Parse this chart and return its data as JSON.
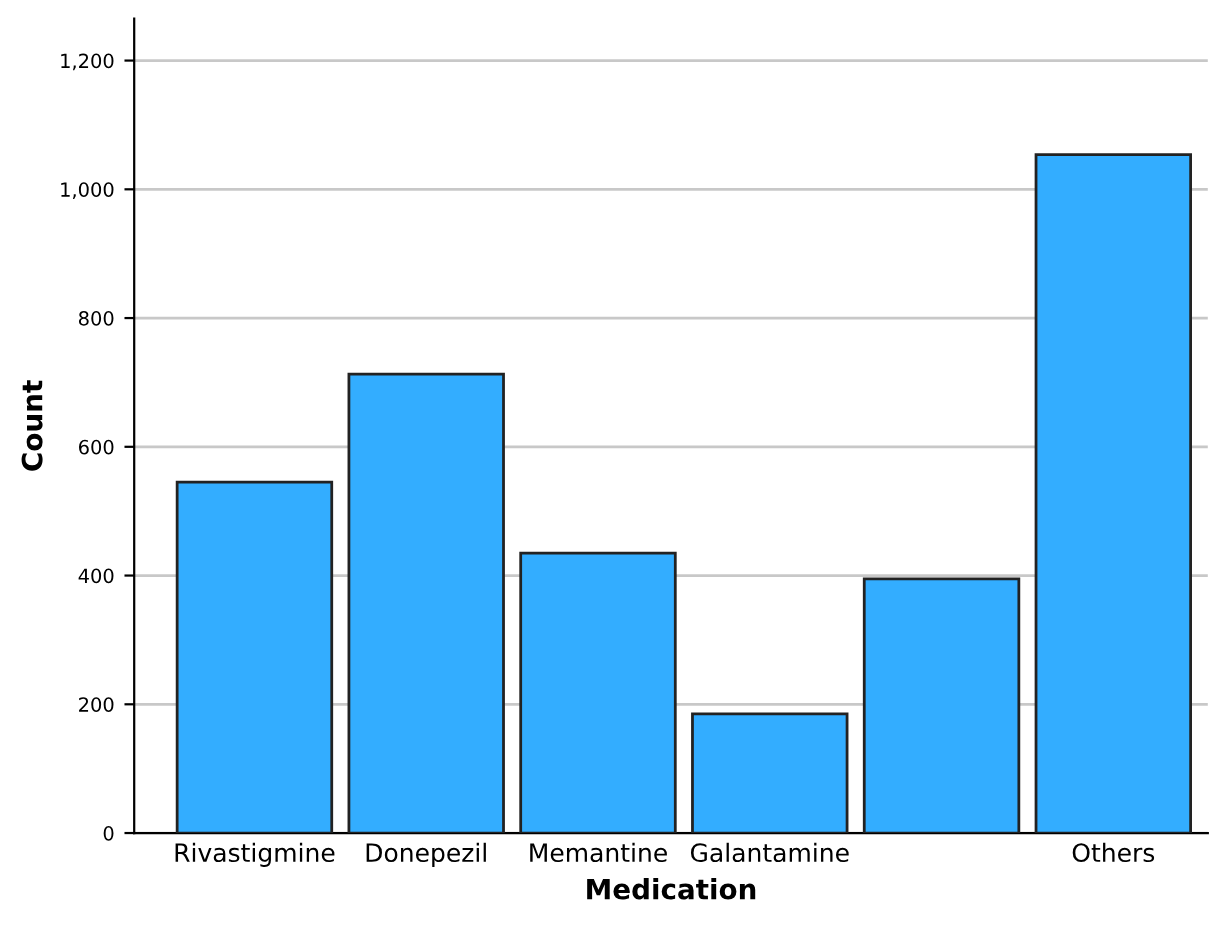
{
  "chart_data": {
    "type": "bar",
    "xlabel": "Medication",
    "ylabel": "Count",
    "categories": [
      "Rivastigmine",
      "Donepezil",
      "Memantine",
      "Galantamine",
      null,
      "Others"
    ],
    "values": [
      545,
      713,
      435,
      185,
      395,
      1054
    ],
    "color": "#33adff",
    "ylim": [
      0,
      1265
    ],
    "yticks": [
      0,
      {
        "value": 200,
        "label": "200"
      },
      {
        "value": 400,
        "label": "400"
      },
      {
        "value": 600,
        "label": "600"
      },
      {
        "value": 800,
        "label": "800"
      },
      {
        "value": 1000,
        "label": "1,000"
      },
      {
        "value": 1200,
        "label": "1,200"
      }
    ],
    "grid": "y",
    "legend": false
  }
}
